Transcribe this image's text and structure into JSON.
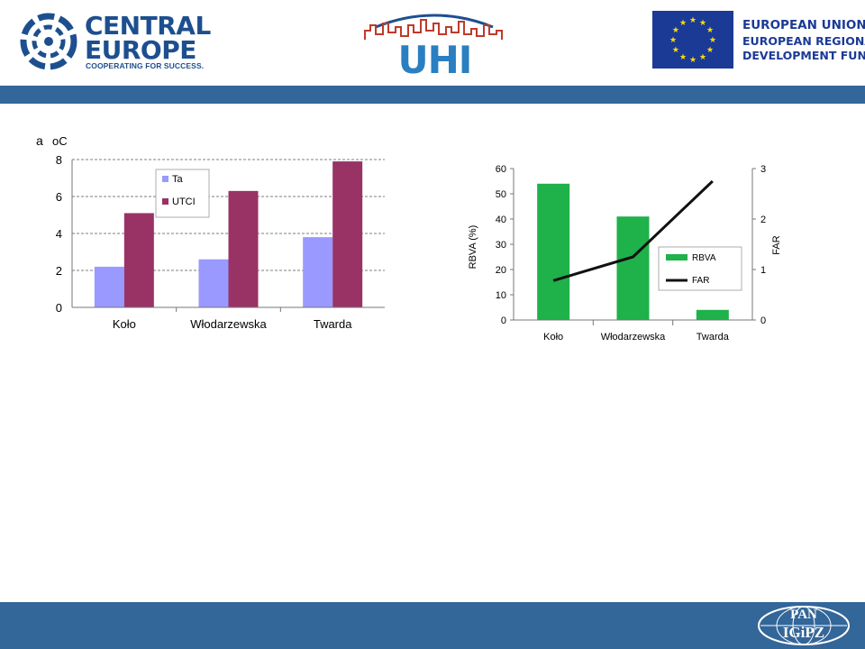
{
  "header": {
    "central_europe": {
      "line1": "CENTRAL",
      "line2": "EUROPE",
      "tagline": "COOPERATING FOR SUCCESS."
    },
    "uhi_logo": "UHI",
    "eu_logo": {
      "line1": "EUROPEAN UNION",
      "line2": "EUROPEAN REGIONAL",
      "line3": "DEVELOPMENT FUND"
    }
  },
  "footer": {
    "logo_line1": "PAN",
    "logo_line2": "IGiPZ"
  },
  "colors": {
    "band": "#336699",
    "ta": "#9999ff",
    "utci": "#993366",
    "rbva": "#1fb14a",
    "far": "#111111"
  },
  "chart_data": [
    {
      "type": "bar",
      "panel_label": "a",
      "unit_label": "oC",
      "categories": [
        "Koło",
        "Włodarzewska",
        "Twarda"
      ],
      "series": [
        {
          "name": "Ta",
          "values": [
            2.2,
            2.6,
            3.8
          ]
        },
        {
          "name": "UTCI",
          "values": [
            5.1,
            6.3,
            7.9
          ]
        }
      ],
      "ylim": [
        0,
        8
      ],
      "yticks": [
        "0",
        "2",
        "4",
        "6",
        "8"
      ],
      "grid": true,
      "legend": "top-left"
    },
    {
      "type": "bar",
      "categories": [
        "Koło",
        "Włodarzewska",
        "Twarda"
      ],
      "series": [
        {
          "name": "RBVA",
          "type": "bar",
          "axis": "left",
          "values": [
            54,
            41,
            4
          ]
        },
        {
          "name": "FAR",
          "type": "line",
          "axis": "right",
          "values": [
            0.78,
            1.25,
            2.75
          ]
        }
      ],
      "ylabel": "RBVA (%)",
      "y2label": "FAR",
      "ylim": [
        0,
        60
      ],
      "y2lim": [
        0,
        3
      ],
      "yticks": [
        "0",
        "10",
        "20",
        "30",
        "40",
        "50",
        "60"
      ],
      "y2ticks": [
        "0",
        "1",
        "2",
        "3"
      ],
      "grid": false,
      "legend": "center-right"
    }
  ]
}
